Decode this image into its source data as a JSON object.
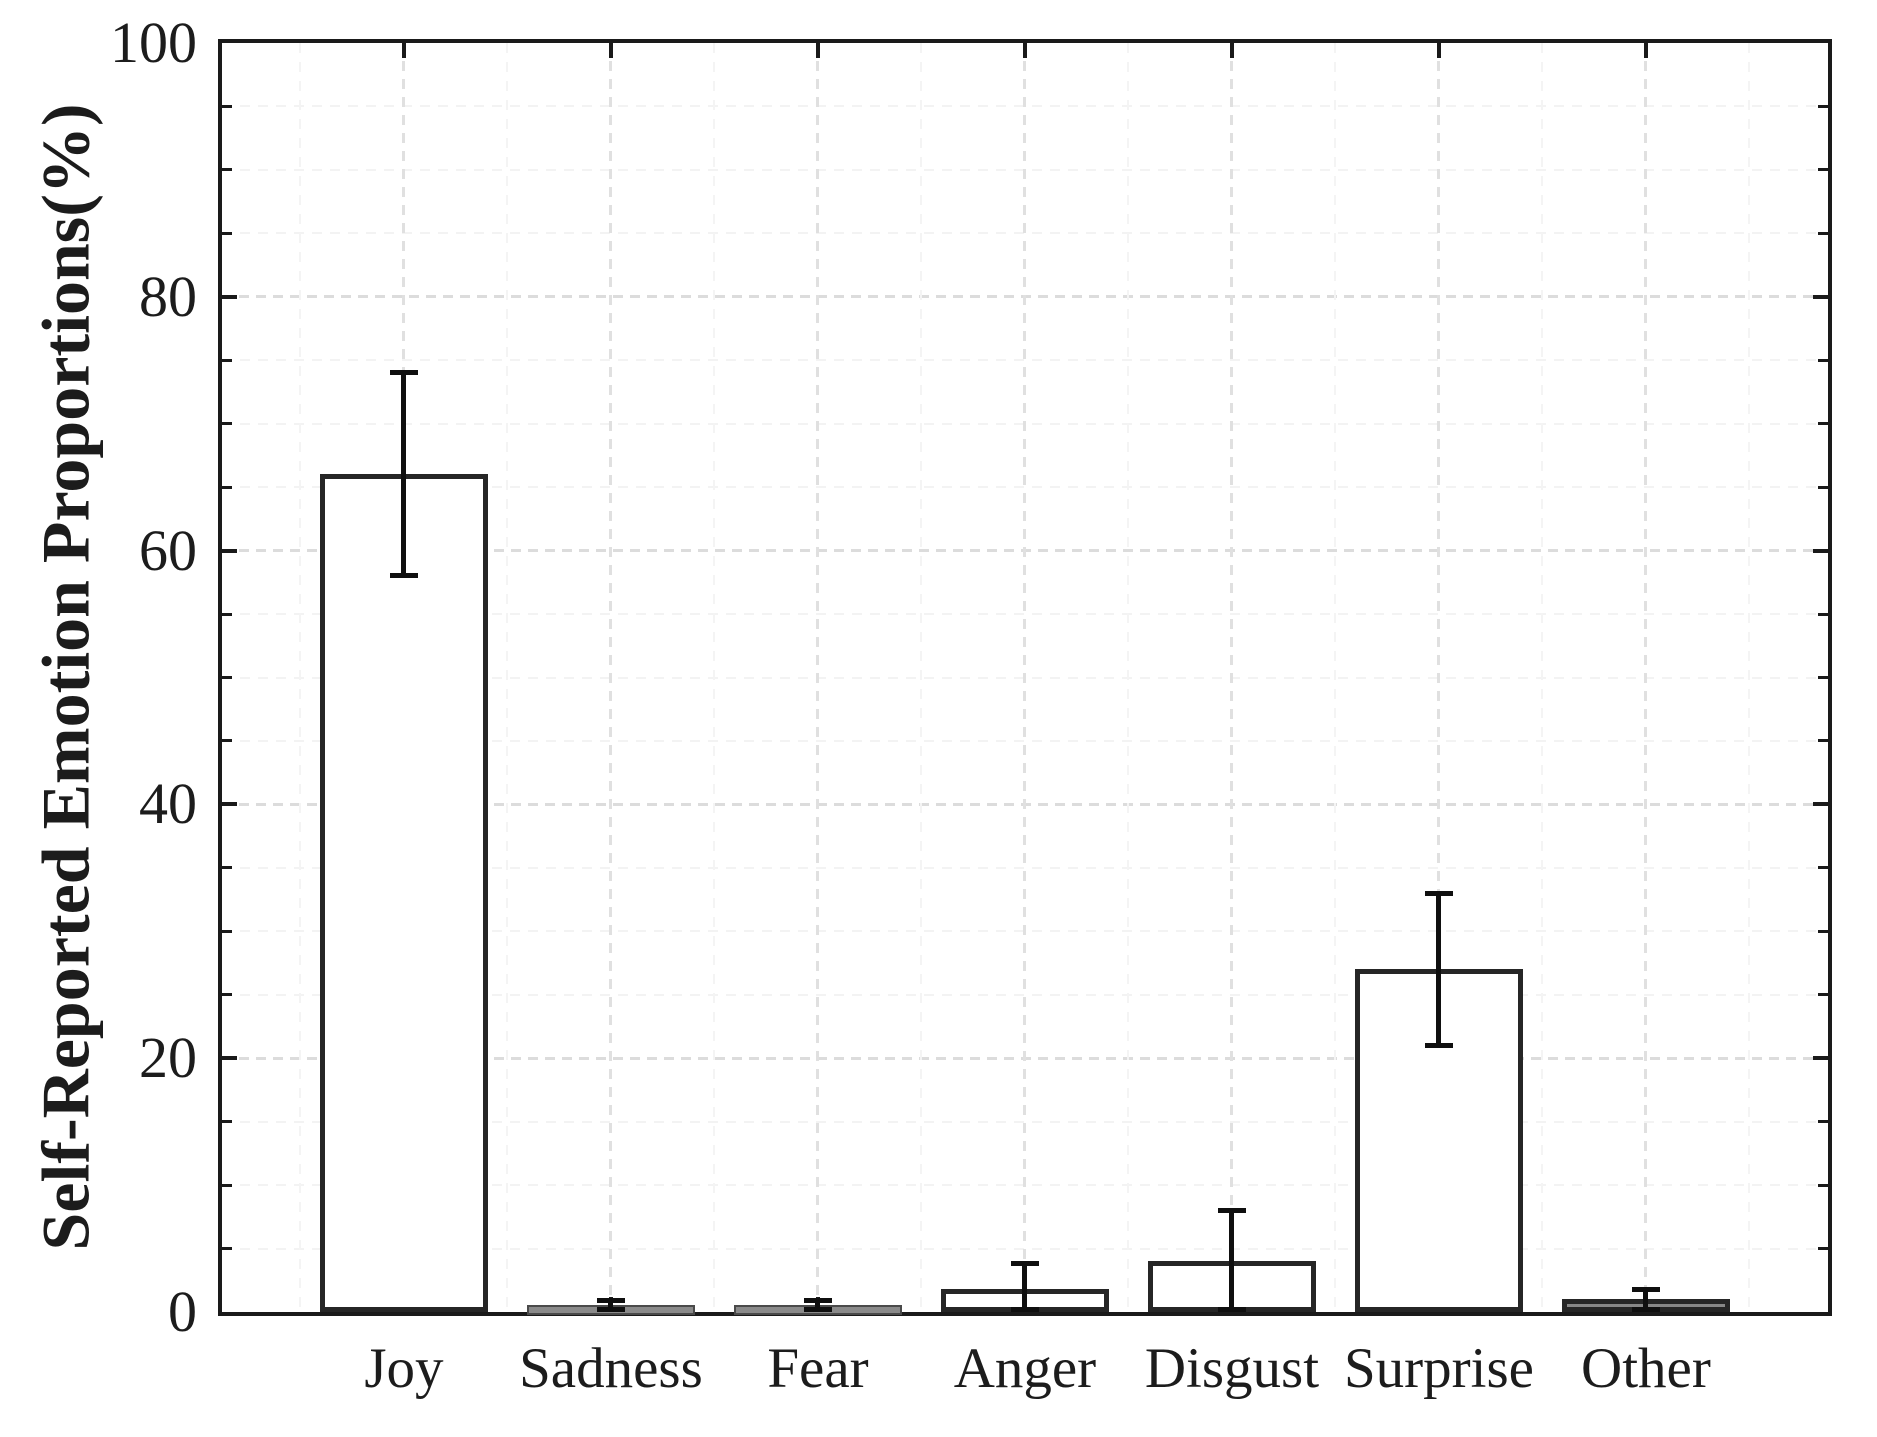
{
  "chart_data": {
    "type": "bar",
    "title": "",
    "xlabel": "",
    "ylabel": "Self-Reported Emotion Proportions(%)",
    "categories": [
      "Joy",
      "Sadness",
      "Fear",
      "Anger",
      "Disgust",
      "Surprise",
      "Other"
    ],
    "values": [
      66,
      0.2,
      0.2,
      1.8,
      4,
      27,
      1
    ],
    "error_low": [
      58,
      0,
      0,
      0,
      0,
      21,
      0
    ],
    "error_high": [
      74,
      0.9,
      0.9,
      3.8,
      8,
      33,
      1.8
    ],
    "ylim": [
      0,
      100
    ],
    "y_major_ticks": [
      0,
      20,
      40,
      60,
      80,
      100
    ],
    "y_tick_labels": [
      "0",
      "20",
      "40",
      "60",
      "80",
      "100"
    ],
    "y_minor_step": 5,
    "grid": {
      "major": "dashed light gray, both axes",
      "minor": "very faint dashed"
    },
    "legend": null,
    "colors": {
      "bar_fill": [
        "#ffffff",
        "#ffffff",
        "#ffffff",
        "#ffffff",
        "#ffffff",
        "#ffffff",
        "#878787"
      ],
      "bar_edge": "#262626",
      "flat_bar_fill": "#8a8a8a",
      "flat_bar_edge": "#4a4a4a",
      "error_bar": "#0f0f0f",
      "axis": "#1a1a1a",
      "major_grid": "#dcdcdc",
      "minor_grid": "#f3f3f3",
      "text": "#1c1c1c"
    }
  }
}
